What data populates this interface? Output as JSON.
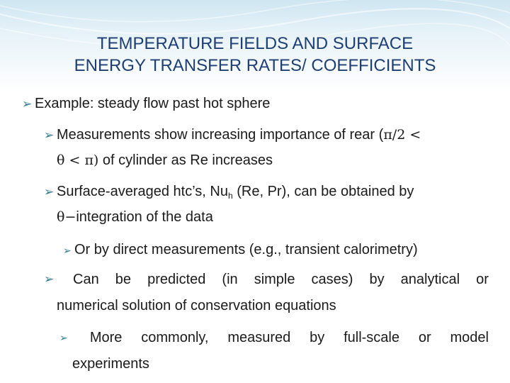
{
  "slide": {
    "title_line1": "TEMPERATURE FIELDS AND  SURFACE",
    "title_line2": "ENERGY TRANSFER RATES/ COEFFICIENTS",
    "bullet1": "Example: steady flow past hot sphere",
    "bullet2_line1_text": "Measurements show increasing importance of rear (",
    "bullet2_line1_math": "π/2 <",
    "bullet2_line2_math": "θ < π)",
    "bullet2_line2_text": " of cylinder as Re increases",
    "bullet3_line1_a": "Surface-averaged htc’s, Nu",
    "bullet3_line1_sub": "h",
    "bullet3_line1_b": " (Re, Pr), can be obtained by",
    "bullet3_line2_math": "θ−",
    "bullet3_line2_text": "integration of the data",
    "bullet4": "Or by direct measurements (e.g., transient calorimetry)",
    "bullet5_words": [
      "Can",
      "be",
      "predicted",
      "(in",
      "simple",
      "cases)",
      "by",
      "analytical",
      "or"
    ],
    "bullet5_line2": "numerical solution of conservation equations",
    "bullet6_words": [
      "More",
      "commonly,",
      "measured",
      "by",
      "full-scale",
      "or",
      "model"
    ],
    "bullet6_line2": "experiments",
    "arrow_glyph": "Ø",
    "colors": {
      "title": "#1f3f73",
      "arrow": "#2f7d8c",
      "text": "#1a1a1a",
      "header_bg": "#cfe6f2"
    }
  }
}
